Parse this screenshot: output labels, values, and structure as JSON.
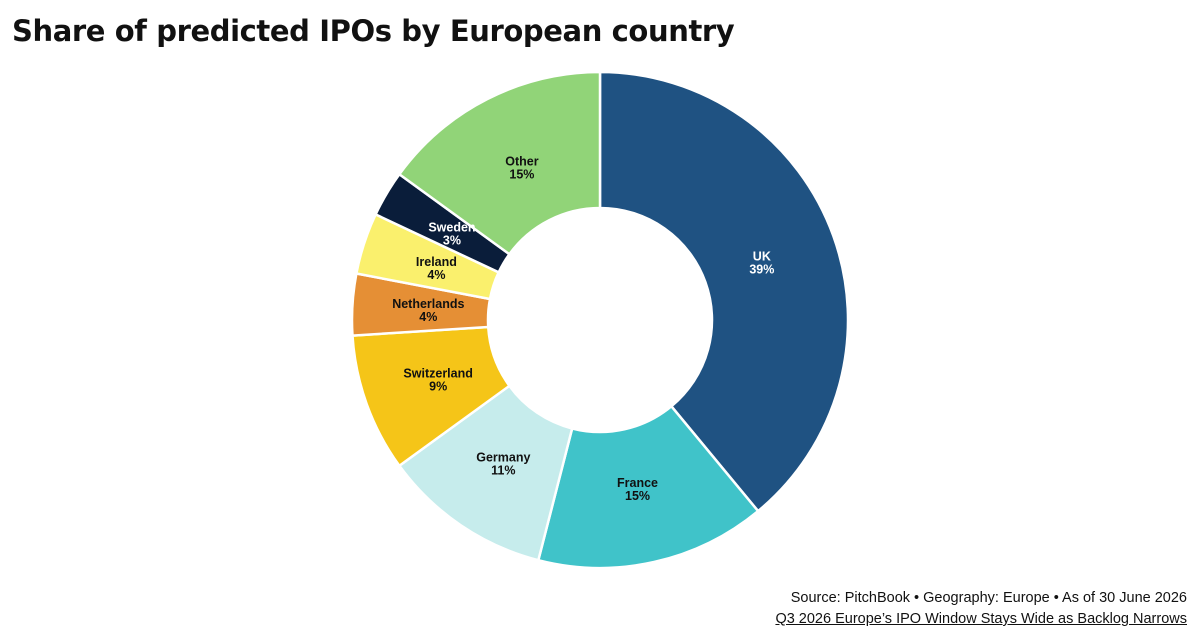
{
  "chart_data": {
    "type": "pie",
    "variant": "donut",
    "title": "Share of predicted IPOs by European country",
    "categories": [
      "UK",
      "France",
      "Germany",
      "Switzerland",
      "Netherlands",
      "Ireland",
      "Sweden",
      "Other"
    ],
    "values": [
      39,
      15,
      11,
      9,
      4,
      4,
      3,
      15
    ],
    "value_labels": [
      "39%",
      "15%",
      "11%",
      "9%",
      "4%",
      "4%",
      "3%",
      "15%"
    ],
    "colors": [
      "#1f5282",
      "#40c3c9",
      "#c6ecec",
      "#f5c518",
      "#e58f35",
      "#faf06d",
      "#0a1d3a",
      "#91d478"
    ],
    "label_colors": [
      "#ffffff",
      "#111111",
      "#111111",
      "#111111",
      "#111111",
      "#111111",
      "#ffffff",
      "#111111"
    ],
    "start_angle": "12 o'clock",
    "direction": "clockwise",
    "legend": "none",
    "grid": false
  },
  "footer": {
    "source": "Source: PitchBook • Geography: Europe • As of 30 June 2026",
    "link": "Q3 2026 Europe’s IPO Window Stays Wide as Backlog Narrows"
  }
}
